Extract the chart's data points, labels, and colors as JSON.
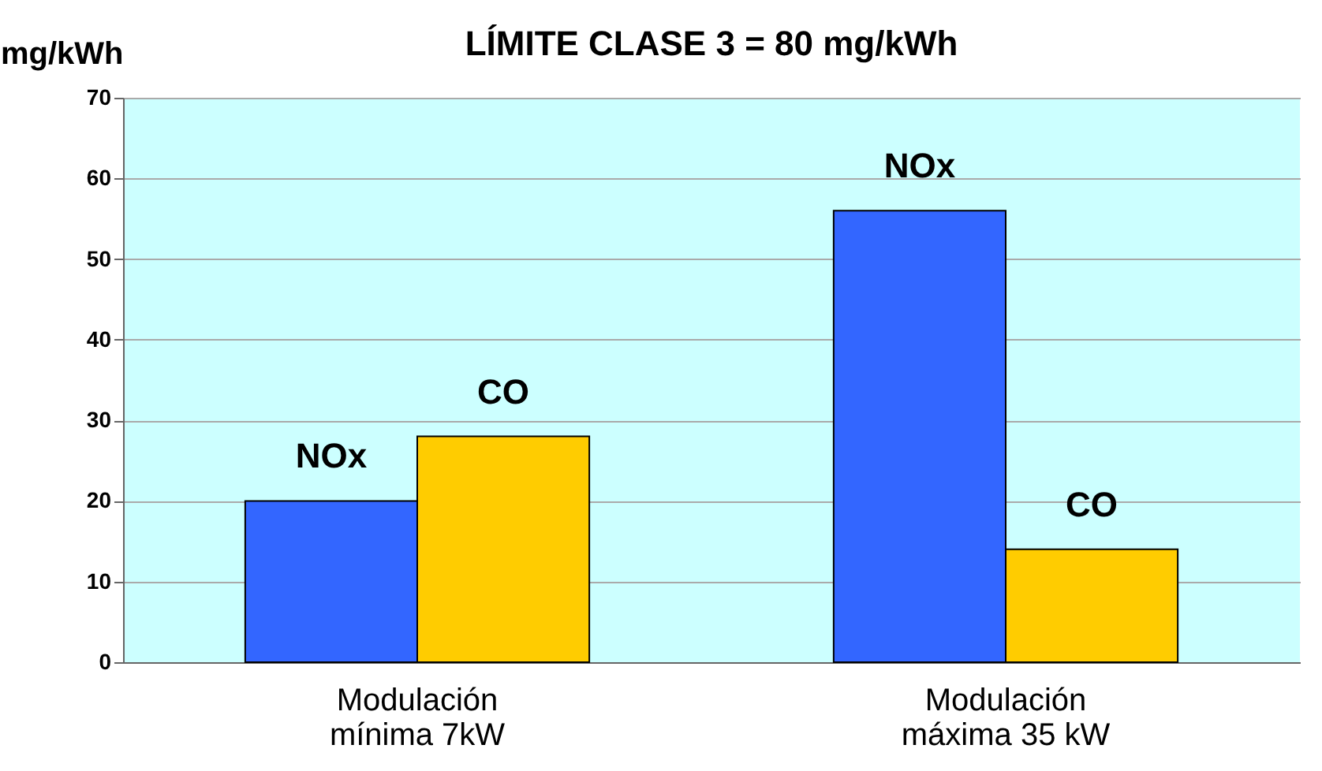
{
  "chart_data": {
    "type": "bar",
    "title": "LÍMITE CLASE 3 = 80 mg/kWh",
    "ylabel": "mg/kWh",
    "categories": [
      "Modulación mínima 7kW",
      "Modulación máxima 35 kW"
    ],
    "series": [
      {
        "name": "NOx",
        "color": "#3366ff",
        "values": [
          20,
          56
        ]
      },
      {
        "name": "CO",
        "color": "#ffcc00",
        "values": [
          28,
          14
        ]
      }
    ],
    "ylim": [
      0,
      70
    ],
    "yticks": [
      0,
      10,
      20,
      30,
      40,
      50,
      60,
      70
    ],
    "grid": "y",
    "legend": false
  }
}
